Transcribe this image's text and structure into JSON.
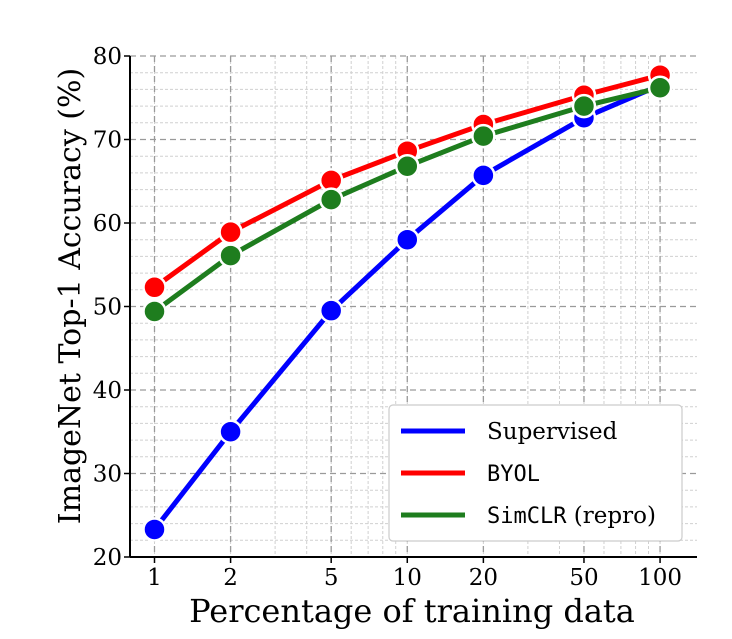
{
  "chart_data": {
    "type": "line",
    "title": "",
    "xlabel": "Percentage of training data",
    "ylabel": "ImageNet Top-1 Accuracy (%)",
    "x_scale": "log",
    "x": [
      1,
      2,
      5,
      10,
      20,
      50,
      100
    ],
    "x_tick_labels": [
      "1",
      "2",
      "5",
      "10",
      "20",
      "50",
      "100"
    ],
    "xlim": [
      0.8,
      140
    ],
    "ylim": [
      20,
      80
    ],
    "y_ticks": [
      20,
      30,
      40,
      50,
      60,
      70,
      80
    ],
    "y_tick_labels": [
      "20",
      "30",
      "40",
      "50",
      "60",
      "70",
      "80"
    ],
    "grid": true,
    "legend_position": "lower-right",
    "series": [
      {
        "name": "Supervised",
        "color": "#0000ff",
        "values": [
          23.3,
          35.0,
          49.5,
          58.0,
          65.7,
          72.6,
          76.5
        ]
      },
      {
        "name": "BYOL",
        "color": "#ff0000",
        "values": [
          52.3,
          58.9,
          65.1,
          68.6,
          71.8,
          75.3,
          77.7
        ]
      },
      {
        "name": "SimCLR (repro)",
        "color": "#1e7d1e",
        "values": [
          49.4,
          56.1,
          62.8,
          66.8,
          70.4,
          74.0,
          76.2
        ]
      }
    ]
  }
}
